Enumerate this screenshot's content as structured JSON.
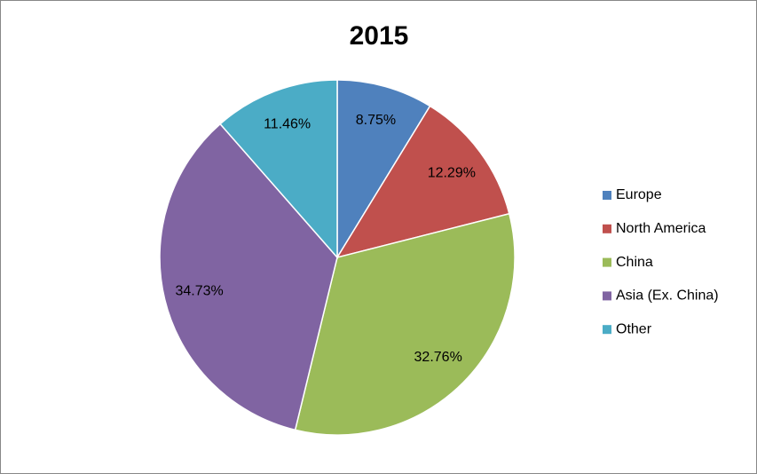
{
  "chart_data": {
    "type": "pie",
    "title": "2015",
    "categories": [
      "Europe",
      "North America",
      "China",
      "Asia (Ex. China)",
      "Other"
    ],
    "values": [
      8.75,
      12.29,
      32.76,
      34.73,
      11.46
    ],
    "value_labels": [
      "8.75%",
      "12.29%",
      "32.76%",
      "34.73%",
      "11.46%"
    ],
    "colors": [
      "#4f81bd",
      "#c0504d",
      "#9bbb59",
      "#8064a2",
      "#4bacc6"
    ],
    "legend": "right"
  }
}
